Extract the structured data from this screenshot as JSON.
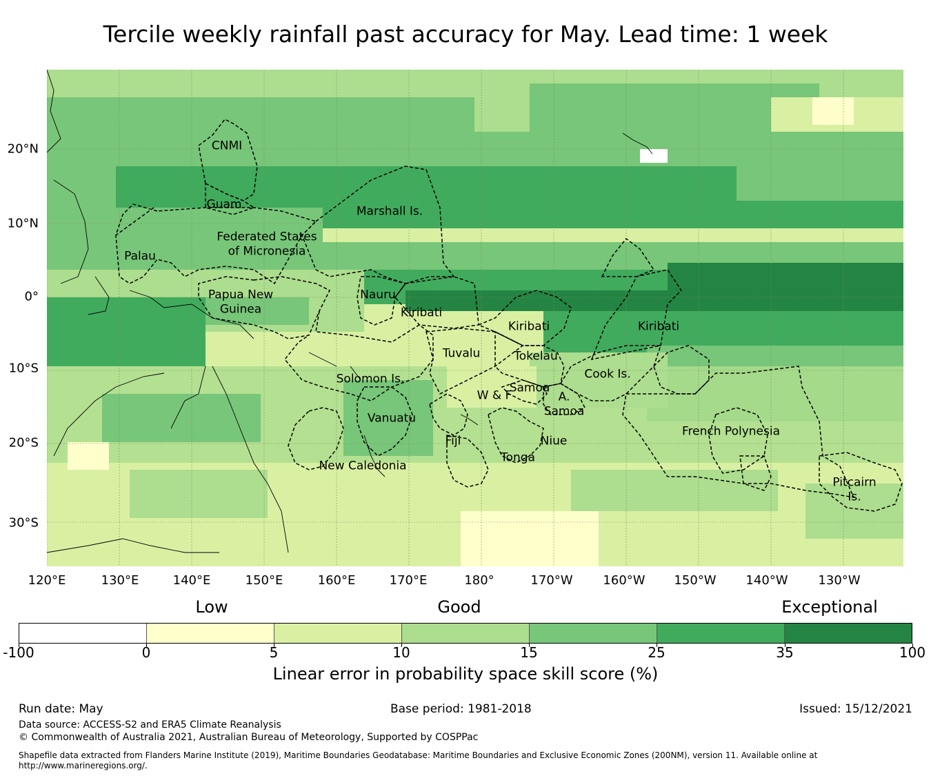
{
  "title": "Tercile weekly rainfall past accuracy for May. Lead time: 1 week",
  "map": {
    "lon_labels": [
      "120°E",
      "130°E",
      "140°E",
      "150°E",
      "160°E",
      "170°E",
      "180°",
      "170°W",
      "160°W",
      "150°W",
      "140°W",
      "130°W"
    ],
    "lat_labels": [
      "20°N",
      "10°N",
      "0°",
      "10°S",
      "20°S",
      "30°S"
    ],
    "regions": [
      {
        "id": "cnmi",
        "text": "CNMI"
      },
      {
        "id": "guam",
        "text": "Guam"
      },
      {
        "id": "marshall",
        "text": "Marshall Is."
      },
      {
        "id": "fsm1",
        "text": "Federated States"
      },
      {
        "id": "fsm2",
        "text": "of Micronesia"
      },
      {
        "id": "palau",
        "text": "Palau"
      },
      {
        "id": "png1",
        "text": "Papua New"
      },
      {
        "id": "png2",
        "text": "Guinea"
      },
      {
        "id": "nauru",
        "text": "Nauru"
      },
      {
        "id": "kiribati-w",
        "text": "Kiribati"
      },
      {
        "id": "kiribati-c",
        "text": "Kiribati"
      },
      {
        "id": "kiribati-e",
        "text": "Kiribati"
      },
      {
        "id": "tuvalu",
        "text": "Tuvalu"
      },
      {
        "id": "tokelau",
        "text": "Tokelau"
      },
      {
        "id": "solomon",
        "text": "Solomon Is."
      },
      {
        "id": "cook",
        "text": "Cook Is."
      },
      {
        "id": "samoa",
        "text": "Samoa"
      },
      {
        "id": "wf",
        "text": "W & F"
      },
      {
        "id": "asamoa1",
        "text": "A."
      },
      {
        "id": "asamoa2",
        "text": "Samoa"
      },
      {
        "id": "vanuatu",
        "text": "Vanuatu"
      },
      {
        "id": "fiji",
        "text": "Fiji"
      },
      {
        "id": "niue",
        "text": "Niue"
      },
      {
        "id": "tonga",
        "text": "Tonga"
      },
      {
        "id": "fp",
        "text": "French Polynesia"
      },
      {
        "id": "newcal",
        "text": "New Caledonia"
      },
      {
        "id": "pitcairn1",
        "text": "Pitcairn"
      },
      {
        "id": "pitcairn2",
        "text": "Is."
      }
    ]
  },
  "legend": {
    "categories": [
      "Low",
      "Good",
      "Exceptional"
    ],
    "bins": [
      {
        "from": -100,
        "to": 0,
        "color": "#ffffff"
      },
      {
        "from": 0,
        "to": 5,
        "color": "#ffffcc"
      },
      {
        "from": 5,
        "to": 10,
        "color": "#d9f0a3"
      },
      {
        "from": 10,
        "to": 15,
        "color": "#addd8e"
      },
      {
        "from": 15,
        "to": 25,
        "color": "#78c679"
      },
      {
        "from": 25,
        "to": 35,
        "color": "#41ab5d"
      },
      {
        "from": 35,
        "to": 100,
        "color": "#238443"
      }
    ],
    "ticks": [
      "-100",
      "0",
      "5",
      "10",
      "15",
      "25",
      "35",
      "100"
    ],
    "label": "Linear error in probability space skill score (%)"
  },
  "footer": {
    "run_date": "Run date: May",
    "base_period": "Base period: 1981-2018",
    "issued": "Issued: 15/12/2021",
    "data_source": "Data source: ACCESS-S2 and ERA5 Climate Reanalysis",
    "copyright": "© Commonwealth of Australia 2021, Australian Bureau of Meteorology, Supported by COSPPac",
    "shapefile_line1": "Shapefile data extracted from Flanders Marine Institute (2019), Maritime Boundaries Geodatabase: Maritime Boundaries and Exclusive Economic Zones (200NM), version 11. Available online at",
    "shapefile_line2": "http://www.marineregions.org/."
  }
}
